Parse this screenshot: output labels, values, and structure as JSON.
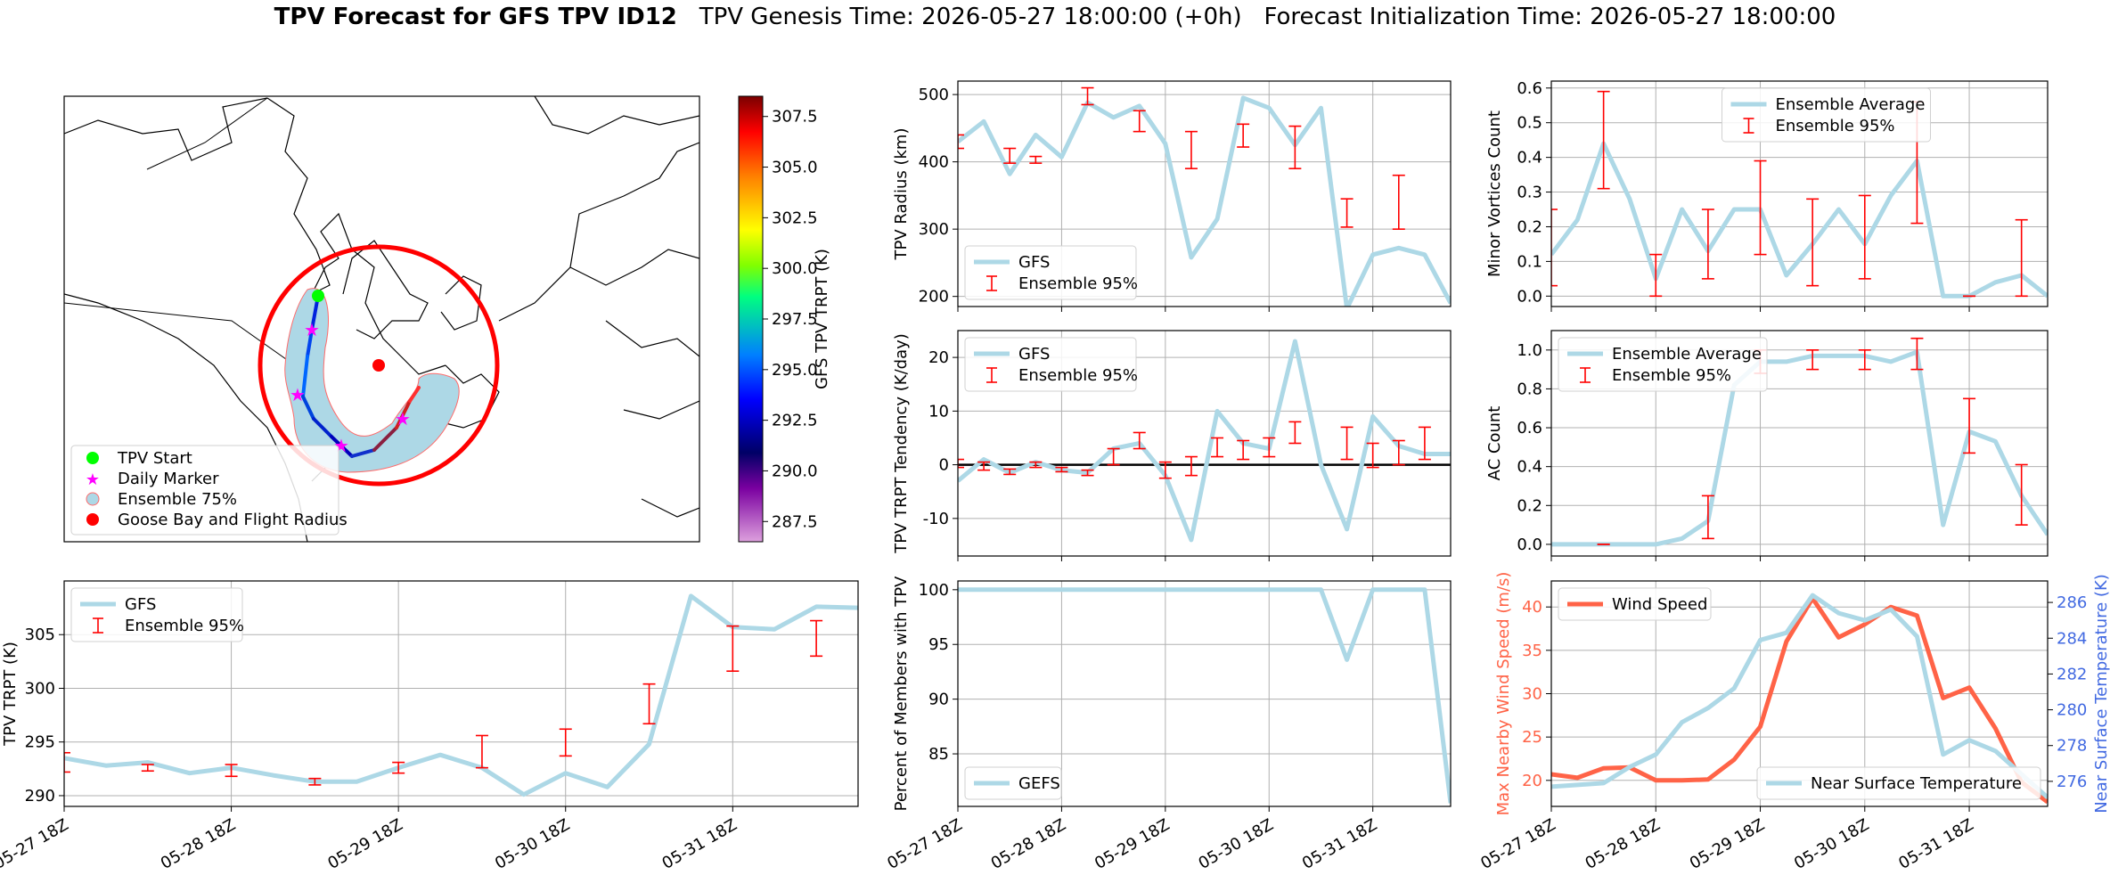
{
  "title": {
    "main": "TPV Forecast for GFS TPV ID12",
    "genesis": "TPV Genesis Time: 2026-05-27 18:00:00 (+0h)",
    "init": "Forecast Initialization Time: 2026-05-27 18:00:00"
  },
  "map": {
    "colorbar_label": "GFS TPV TRPT (K)",
    "colorbar_ticks": [
      "287.5",
      "290.0",
      "292.5",
      "295.0",
      "297.5",
      "300.0",
      "302.5",
      "305.0",
      "307.5"
    ],
    "colorbar_range": [
      286.5,
      308.5
    ],
    "legend": [
      "TPV Start",
      "Daily Marker",
      "Ensemble 75%",
      "Goose Bay and Flight Radius"
    ],
    "colors": {
      "start": "#00ff00",
      "daily": "#ff00ff",
      "ensemble": "#add8e6",
      "goose": "#ff0000"
    }
  },
  "x_tick_labels": [
    "05-27 18Z",
    "05-28 18Z",
    "05-29 18Z",
    "05-30 18Z",
    "05-31 18Z"
  ],
  "chart_data": [
    {
      "id": "radius",
      "type": "line",
      "ylabel": "TPV Radius (km)",
      "ylim": [
        185,
        520
      ],
      "yticks": [
        200,
        300,
        400,
        500
      ],
      "legend": [
        "GFS",
        "Ensemble 95%"
      ],
      "legend_loc": "lower-left",
      "series": [
        {
          "name": "GFS",
          "color": "#add8e6",
          "values": [
            430,
            460,
            382,
            440,
            407,
            488,
            466,
            483,
            427,
            258,
            315,
            495,
            480,
            425,
            480,
            182,
            262,
            272,
            262,
            190
          ]
        }
      ],
      "errorbars": [
        [
          0,
          420,
          440
        ],
        [
          2,
          398,
          420
        ],
        [
          3,
          398,
          408
        ],
        [
          5,
          485,
          510
        ],
        [
          7,
          445,
          476
        ],
        [
          9,
          390,
          445
        ],
        [
          11,
          422,
          456
        ],
        [
          13,
          390,
          453
        ],
        [
          15,
          303,
          345
        ],
        [
          17,
          300,
          380
        ]
      ]
    },
    {
      "id": "tendency",
      "type": "line",
      "ylabel": "TPV TRPT Tendency (K/day)",
      "ylim": [
        -17,
        25
      ],
      "yticks": [
        -10,
        0,
        10,
        20
      ],
      "legend": [
        "GFS",
        "Ensemble 95%"
      ],
      "legend_loc": "upper-left",
      "series": [
        {
          "name": "GFS",
          "color": "#add8e6",
          "values": [
            -3,
            1,
            -1.5,
            0.5,
            -1,
            -1.5,
            3,
            4,
            -2,
            -14,
            10,
            4,
            3,
            23,
            0,
            -12,
            9,
            3.5,
            2,
            2
          ]
        }
      ],
      "errorbars": [
        [
          0,
          -0.5,
          1
        ],
        [
          1,
          -1,
          0.5
        ],
        [
          2,
          -1.8,
          -0.8
        ],
        [
          3,
          -0.5,
          0.5
        ],
        [
          4,
          -1.3,
          -0.5
        ],
        [
          5,
          -2,
          -1
        ],
        [
          6,
          0,
          3
        ],
        [
          7,
          3,
          6
        ],
        [
          8,
          -2.5,
          0.5
        ],
        [
          9,
          -2,
          1.5
        ],
        [
          10,
          1.5,
          5
        ],
        [
          11,
          1,
          4.5
        ],
        [
          12,
          1.5,
          5
        ],
        [
          13,
          4,
          8
        ],
        [
          15,
          1,
          7
        ],
        [
          16,
          -0.5,
          4
        ],
        [
          17,
          0,
          4.5
        ],
        [
          18,
          1,
          7
        ]
      ]
    },
    {
      "id": "minor",
      "type": "line",
      "ylabel": "Minor Vortices Count",
      "ylim": [
        -0.03,
        0.62
      ],
      "yticks": [
        0.0,
        0.1,
        0.2,
        0.3,
        0.4,
        0.5,
        0.6
      ],
      "legend": [
        "Ensemble Average",
        "Ensemble 95%"
      ],
      "legend_loc": "upper-center",
      "series": [
        {
          "name": "Ensemble Average",
          "color": "#add8e6",
          "values": [
            0.12,
            0.22,
            0.44,
            0.28,
            0.05,
            0.25,
            0.13,
            0.25,
            0.25,
            0.06,
            0.15,
            0.25,
            0.15,
            0.29,
            0.39,
            0.0,
            0.0,
            0.04,
            0.06,
            0.0
          ]
        }
      ],
      "errorbars": [
        [
          0,
          0.03,
          0.25
        ],
        [
          2,
          0.31,
          0.59
        ],
        [
          4,
          0.0,
          0.12
        ],
        [
          6,
          0.05,
          0.25
        ],
        [
          8,
          0.12,
          0.39
        ],
        [
          10,
          0.03,
          0.28
        ],
        [
          12,
          0.05,
          0.29
        ],
        [
          14,
          0.21,
          0.56
        ],
        [
          16,
          0.0,
          0.0
        ],
        [
          18,
          0.0,
          0.22
        ]
      ]
    },
    {
      "id": "ac",
      "type": "line",
      "ylabel": "AC Count",
      "ylim": [
        -0.06,
        1.1
      ],
      "yticks": [
        0.0,
        0.2,
        0.4,
        0.6,
        0.8,
        1.0
      ],
      "legend": [
        "Ensemble Average",
        "Ensemble 95%"
      ],
      "legend_loc": "upper-left",
      "series": [
        {
          "name": "Ensemble Average",
          "color": "#add8e6",
          "values": [
            0,
            0,
            0,
            0,
            0,
            0.03,
            0.12,
            0.82,
            0.94,
            0.94,
            0.97,
            0.97,
            0.97,
            0.94,
            0.99,
            0.1,
            0.58,
            0.53,
            0.25,
            0.05
          ]
        }
      ],
      "errorbars": [
        [
          2,
          0,
          0
        ],
        [
          6,
          0.03,
          0.25
        ],
        [
          8,
          0.88,
          1.0
        ],
        [
          10,
          0.9,
          1.0
        ],
        [
          12,
          0.9,
          1.0
        ],
        [
          14,
          0.9,
          1.06
        ],
        [
          16,
          0.47,
          0.75
        ],
        [
          18,
          0.1,
          0.41
        ]
      ]
    },
    {
      "id": "trpt",
      "type": "line",
      "ylabel": "TPV TRPT (K)",
      "ylim": [
        289,
        310
      ],
      "yticks": [
        290,
        295,
        300,
        305
      ],
      "legend": [
        "GFS",
        "Ensemble 95%"
      ],
      "legend_loc": "upper-left",
      "series": [
        {
          "name": "GFS",
          "color": "#add8e6",
          "values": [
            293.5,
            292.8,
            293.1,
            292.1,
            292.6,
            291.9,
            291.3,
            291.3,
            292.6,
            293.8,
            292.6,
            290.1,
            292.1,
            290.8,
            294.8,
            308.6,
            305.7,
            305.5,
            307.6,
            307.5
          ]
        }
      ],
      "errorbars": [
        [
          0,
          292.2,
          294.0
        ],
        [
          2,
          292.3,
          292.9
        ],
        [
          4,
          291.8,
          292.9
        ],
        [
          6,
          291.0,
          291.6
        ],
        [
          8,
          292.1,
          293.1
        ],
        [
          10,
          292.6,
          295.6
        ],
        [
          12,
          293.7,
          296.2
        ],
        [
          14,
          296.7,
          300.4
        ],
        [
          16,
          301.6,
          305.8
        ],
        [
          18,
          303.0,
          306.3
        ]
      ]
    },
    {
      "id": "percent",
      "type": "line",
      "ylabel": "Percent of Members with TPV",
      "ylim": [
        80.2,
        100.8
      ],
      "yticks": [
        85,
        90,
        95,
        100
      ],
      "legend": [
        "GEFS"
      ],
      "legend_loc": "lower-left",
      "series": [
        {
          "name": "GEFS",
          "color": "#add8e6",
          "values": [
            100,
            100,
            100,
            100,
            100,
            100,
            100,
            100,
            100,
            100,
            100,
            100,
            100,
            100,
            100,
            93.6,
            100,
            100,
            100,
            80.5
          ]
        }
      ],
      "errorbars": []
    },
    {
      "id": "wind",
      "type": "line",
      "ylabel": "Max Nearby Wind Speed (m/s)",
      "ylabel_right": "Near Surface Temperature (K)",
      "ylim": [
        17,
        43
      ],
      "yticks": [
        20,
        25,
        30,
        35,
        40
      ],
      "ylim_right": [
        274.6,
        287.2
      ],
      "yticks_right": [
        276,
        278,
        280,
        282,
        284,
        286
      ],
      "legend": [
        "Wind Speed"
      ],
      "legend_loc": "upper-left",
      "legend_right": [
        "Near Surface Temperature"
      ],
      "legend_right_loc": "lower-right",
      "series": [
        {
          "name": "Wind Speed",
          "color": "#ff6347",
          "axis": "left",
          "values": [
            20.7,
            20.3,
            21.4,
            21.5,
            20.0,
            20.0,
            20.1,
            22.4,
            26.2,
            36.0,
            41.0,
            36.5,
            38.0,
            40.0,
            39.0,
            29.5,
            30.7,
            26.0,
            19.8,
            17.5
          ]
        },
        {
          "name": "Near Surface Temperature",
          "color": "#add8e6",
          "axis": "right",
          "values": [
            275.7,
            275.8,
            275.9,
            276.8,
            277.5,
            279.3,
            280.1,
            281.2,
            283.9,
            284.3,
            286.4,
            285.4,
            285.0,
            285.6,
            284.1,
            277.5,
            278.3,
            277.7,
            276.4,
            275.1
          ]
        }
      ],
      "errorbars": []
    }
  ]
}
